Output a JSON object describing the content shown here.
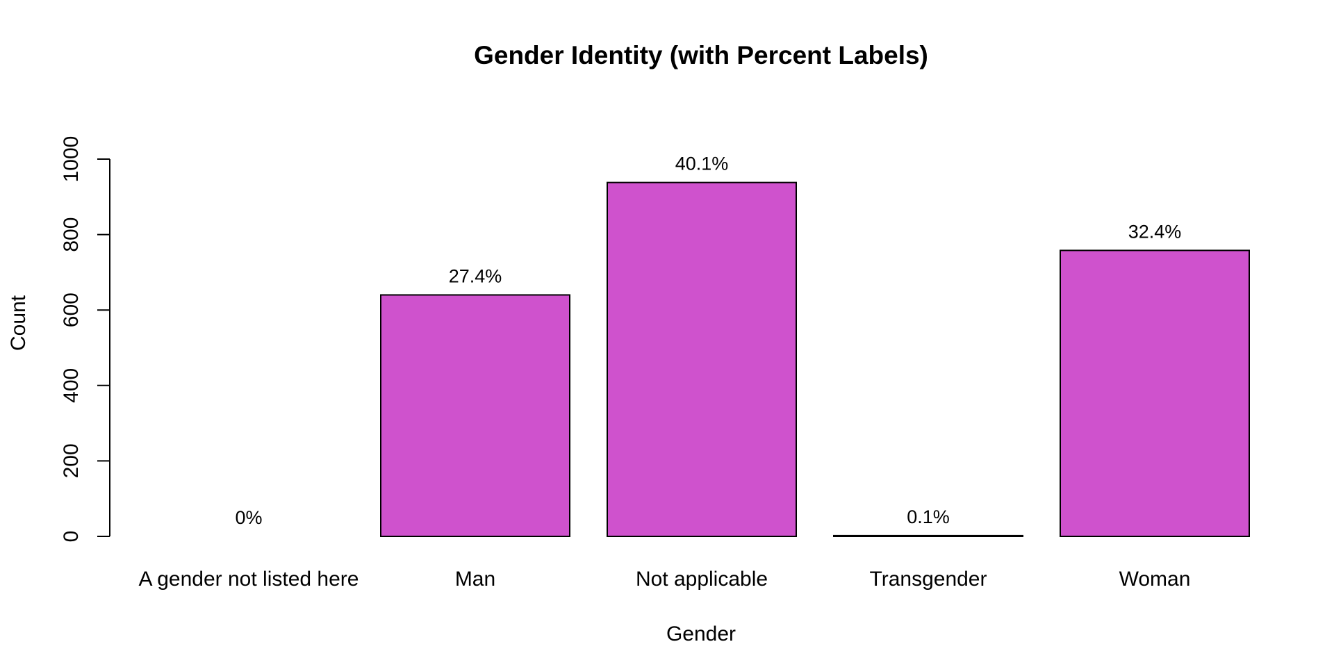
{
  "chart_data": {
    "type": "bar",
    "title": "Gender Identity (with Percent Labels)",
    "xlabel": "Gender",
    "ylabel": "Count",
    "categories": [
      "A gender not listed here",
      "Man",
      "Not applicable",
      "Transgender",
      "Woman"
    ],
    "values": [
      0,
      640,
      938,
      2,
      758
    ],
    "percent_labels": [
      "0%",
      "27.4%",
      "40.1%",
      "0.1%",
      "32.4%"
    ],
    "yticks": [
      0,
      200,
      400,
      600,
      800,
      1000
    ],
    "ylim": [
      0,
      1000
    ],
    "bar_color": "#cf52cd",
    "grid": false,
    "legend": "none"
  }
}
